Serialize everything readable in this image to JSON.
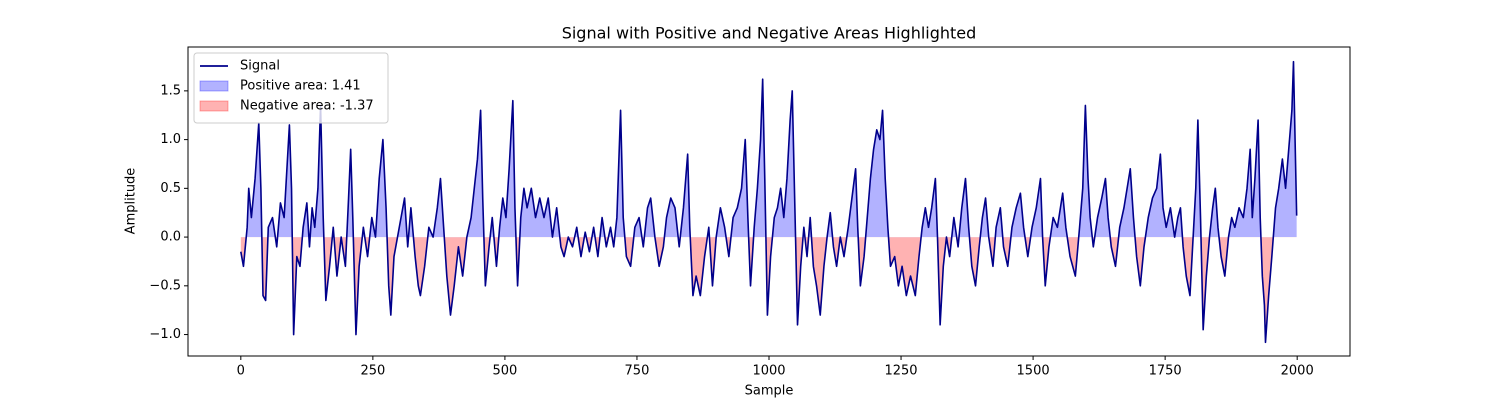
{
  "chart_data": {
    "type": "line",
    "title": "Signal with Positive and Negative Areas Highlighted",
    "x_label": "Sample",
    "y_label": "Amplitude",
    "xlim": [
      -100,
      2100
    ],
    "xticks": [
      0,
      250,
      500,
      750,
      1000,
      1250,
      1500,
      1750,
      2000
    ],
    "ylim": [
      -1.22,
      1.95
    ],
    "yticks": [
      {
        "value": -1,
        "label": "−1.0"
      },
      {
        "value": -0.5,
        "label": "−0.5"
      },
      {
        "value": 0,
        "label": "0.0"
      },
      {
        "value": 0.5,
        "label": "0.5"
      },
      {
        "value": 1,
        "label": "1.0"
      },
      {
        "value": 1.5,
        "label": "1.5"
      }
    ],
    "legend": "upper left",
    "x": [
      0,
      5,
      12,
      15,
      20,
      27,
      34,
      38,
      42,
      47,
      52,
      60,
      68,
      75,
      82,
      92,
      96,
      100,
      106,
      112,
      118,
      125,
      130,
      135,
      140,
      146,
      151,
      156,
      161,
      168,
      175,
      182,
      190,
      198,
      204,
      208,
      212,
      218,
      224,
      232,
      240,
      248,
      255,
      262,
      269,
      275,
      280,
      284,
      290,
      300,
      310,
      316,
      322,
      330,
      336,
      340,
      348,
      356,
      364,
      372,
      378,
      384,
      390,
      397,
      404,
      412,
      420,
      428,
      436,
      442,
      448,
      454,
      458,
      463,
      470,
      476,
      484,
      490,
      496,
      502,
      508,
      515,
      519,
      524,
      530,
      536,
      542,
      550,
      558,
      566,
      574,
      582,
      590,
      598,
      606,
      612,
      620,
      628,
      636,
      644,
      652,
      660,
      668,
      676,
      684,
      692,
      700,
      706,
      712,
      719,
      724,
      730,
      738,
      746,
      754,
      762,
      770,
      776,
      784,
      792,
      800,
      806,
      814,
      822,
      830,
      838,
      846,
      850,
      856,
      862,
      870,
      878,
      886,
      893,
      900,
      908,
      916,
      924,
      932,
      940,
      948,
      955,
      960,
      965,
      972,
      978,
      984,
      988,
      992,
      997,
      1003,
      1010,
      1016,
      1022,
      1028,
      1034,
      1040,
      1044,
      1049,
      1054,
      1060,
      1066,
      1072,
      1078,
      1084,
      1090,
      1097,
      1104,
      1110,
      1116,
      1122,
      1128,
      1135,
      1142,
      1150,
      1157,
      1164,
      1168,
      1173,
      1180,
      1186,
      1192,
      1198,
      1204,
      1210,
      1215,
      1220,
      1225,
      1230,
      1238,
      1245,
      1252,
      1260,
      1268,
      1277,
      1284,
      1290,
      1296,
      1302,
      1308,
      1315,
      1319,
      1324,
      1330,
      1336,
      1342,
      1350,
      1358,
      1365,
      1372,
      1378,
      1384,
      1391,
      1398,
      1404,
      1410,
      1416,
      1424,
      1430,
      1438,
      1444,
      1452,
      1460,
      1468,
      1476,
      1482,
      1490,
      1498,
      1506,
      1514,
      1518,
      1523,
      1530,
      1538,
      1546,
      1556,
      1562,
      1570,
      1580,
      1588,
      1594,
      1599,
      1604,
      1608,
      1614,
      1622,
      1630,
      1637,
      1642,
      1648,
      1656,
      1664,
      1672,
      1678,
      1684,
      1690,
      1696,
      1703,
      1710,
      1718,
      1726,
      1734,
      1741,
      1746,
      1752,
      1760,
      1768,
      1774,
      1779,
      1784,
      1790,
      1797,
      1803,
      1808,
      1812,
      1817,
      1822,
      1828,
      1834,
      1840,
      1845,
      1850,
      1856,
      1863,
      1870,
      1876,
      1882,
      1890,
      1898,
      1905,
      1911,
      1915,
      1920,
      1926,
      1930,
      1934,
      1938,
      1940,
      1946,
      1952,
      1959,
      1965,
      1972,
      1978,
      1984,
      1990,
      1993,
      1996,
      1999
    ],
    "series": [
      {
        "name": "Signal",
        "color": "#00008b",
        "values": [
          -0.15,
          -0.3,
          0.1,
          0.5,
          0.2,
          0.6,
          1.17,
          0.5,
          -0.6,
          -0.65,
          0.1,
          0.2,
          -0.1,
          0.35,
          0.2,
          1.15,
          0.5,
          -1.0,
          -0.2,
          -0.3,
          0.1,
          0.35,
          -0.1,
          0.3,
          0.1,
          0.5,
          1.35,
          0.2,
          -0.65,
          -0.3,
          0.1,
          -0.4,
          0.0,
          -0.3,
          0.4,
          0.9,
          0.2,
          -1.0,
          -0.3,
          0.1,
          -0.2,
          0.2,
          0.0,
          0.6,
          1.0,
          0.3,
          -0.5,
          -0.8,
          -0.2,
          0.1,
          0.4,
          -0.1,
          0.3,
          -0.2,
          -0.5,
          -0.6,
          -0.3,
          0.1,
          0.0,
          0.3,
          0.6,
          0.1,
          -0.4,
          -0.8,
          -0.5,
          -0.1,
          -0.4,
          0.0,
          0.2,
          0.5,
          0.8,
          1.3,
          0.4,
          -0.5,
          -0.1,
          0.2,
          -0.3,
          0.1,
          0.4,
          0.2,
          0.7,
          1.4,
          0.3,
          -0.5,
          0.2,
          0.5,
          0.3,
          0.5,
          0.2,
          0.4,
          0.2,
          0.4,
          0.0,
          0.3,
          -0.1,
          -0.2,
          0.0,
          -0.1,
          0.1,
          -0.2,
          0.05,
          -0.15,
          0.1,
          -0.2,
          0.2,
          -0.1,
          0.1,
          -0.1,
          0.2,
          1.3,
          0.2,
          -0.2,
          -0.3,
          0.1,
          0.2,
          -0.1,
          0.3,
          0.4,
          0.0,
          -0.3,
          -0.1,
          0.2,
          0.4,
          0.3,
          -0.1,
          0.3,
          0.85,
          0.1,
          -0.6,
          -0.4,
          -0.6,
          -0.2,
          0.1,
          -0.5,
          0.0,
          0.3,
          0.1,
          -0.2,
          0.2,
          0.3,
          0.5,
          1.0,
          0.2,
          -0.5,
          0.1,
          0.5,
          1.0,
          1.62,
          0.6,
          -0.8,
          -0.2,
          0.2,
          0.3,
          0.5,
          0.2,
          0.6,
          1.2,
          1.5,
          0.3,
          -0.9,
          -0.3,
          0.1,
          -0.2,
          0.2,
          -0.3,
          -0.5,
          -0.8,
          -0.3,
          0.0,
          0.25,
          -0.1,
          -0.3,
          0.0,
          -0.2,
          0.1,
          0.4,
          0.7,
          0.1,
          -0.5,
          -0.2,
          0.2,
          0.6,
          0.9,
          1.1,
          1.0,
          1.3,
          0.6,
          0.1,
          -0.3,
          -0.2,
          -0.5,
          -0.3,
          -0.6,
          -0.4,
          -0.6,
          -0.2,
          0.1,
          0.3,
          0.1,
          0.3,
          0.6,
          0.0,
          -0.9,
          -0.3,
          0.0,
          -0.2,
          0.2,
          -0.1,
          0.3,
          0.6,
          0.1,
          -0.3,
          -0.5,
          -0.1,
          0.2,
          0.4,
          0.0,
          -0.3,
          0.1,
          0.3,
          -0.1,
          -0.3,
          0.1,
          0.3,
          0.45,
          0.1,
          -0.2,
          0.1,
          0.3,
          0.6,
          0.0,
          -0.5,
          -0.1,
          0.2,
          0.1,
          0.45,
          0.1,
          -0.2,
          -0.4,
          0.1,
          0.5,
          1.35,
          0.6,
          0.2,
          -0.1,
          0.2,
          0.4,
          0.6,
          0.2,
          -0.1,
          -0.3,
          0.1,
          0.3,
          0.5,
          0.7,
          0.2,
          -0.2,
          -0.5,
          -0.1,
          0.2,
          0.4,
          0.5,
          0.85,
          0.3,
          0.1,
          0.3,
          0.0,
          0.2,
          0.3,
          -0.1,
          -0.4,
          -0.6,
          0.0,
          0.5,
          1.2,
          0.2,
          -0.95,
          -0.4,
          0.0,
          0.3,
          0.5,
          0.1,
          -0.2,
          -0.4,
          0.0,
          0.2,
          0.1,
          0.3,
          0.2,
          0.5,
          0.9,
          0.2,
          0.6,
          1.2,
          0.2,
          -0.4,
          -0.7,
          -1.08,
          -0.6,
          -0.2,
          0.3,
          0.5,
          0.8,
          0.5,
          0.9,
          1.3,
          1.8,
          1.0,
          0.22
        ]
      }
    ],
    "fills": [
      {
        "name": "Positive area: 1.41",
        "color": "#0000ff",
        "side": "above"
      },
      {
        "name": "Negative area: -1.37",
        "color": "#ff0000",
        "side": "below"
      }
    ]
  }
}
